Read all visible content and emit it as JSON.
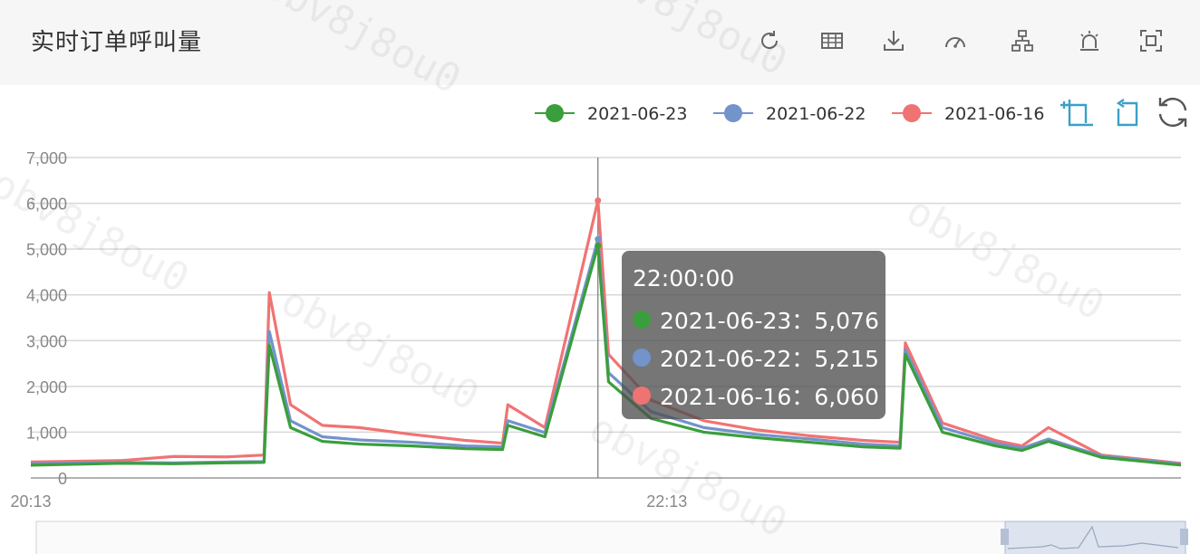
{
  "header": {
    "title": "实时订单呼叫量",
    "tools": [
      "refresh-icon",
      "data-view-icon",
      "download-icon",
      "gauge-icon",
      "hierarchy-icon",
      "alarm-icon",
      "fullscreen-icon"
    ]
  },
  "toolbox": [
    "zoom-select-icon",
    "zoom-back-icon",
    "restore-icon"
  ],
  "tooltip": {
    "time": "22:00:00",
    "rows": [
      {
        "text": "2021-06-23：5,076",
        "color": "#3a9e3c"
      },
      {
        "text": "2021-06-22：5,215",
        "color": "#7393cb"
      },
      {
        "text": "2021-06-16：6,060",
        "color": "#f07373"
      }
    ]
  },
  "watermark": "obv8j8ou0",
  "chart_data": {
    "type": "line",
    "title": "实时订单呼叫量",
    "legend_position": "top-right",
    "x_tick_labels": [
      "20:13",
      "22:13"
    ],
    "x_start": "20:13",
    "x_end": "23:50",
    "ylim": [
      0,
      7000
    ],
    "y_ticks": [
      0,
      1000,
      2000,
      3000,
      4000,
      5000,
      6000,
      7000
    ],
    "y_tick_labels": [
      "0",
      "1,000",
      "2,000",
      "3,000",
      "4,000",
      "5,000",
      "6,000",
      "7,000"
    ],
    "grid": true,
    "x": [
      "20:13",
      "20:30",
      "20:40",
      "20:50",
      "20:57",
      "20:58",
      "21:02",
      "21:08",
      "21:15",
      "21:25",
      "21:35",
      "21:42",
      "21:43",
      "21:50",
      "22:00",
      "22:02",
      "22:10",
      "22:20",
      "22:30",
      "22:40",
      "22:50",
      "22:57",
      "22:58",
      "23:05",
      "23:15",
      "23:20",
      "23:25",
      "23:35",
      "23:50"
    ],
    "series": [
      {
        "name": "2021-06-23",
        "color": "#3a9e3c",
        "values": [
          280,
          320,
          310,
          330,
          340,
          2900,
          1100,
          800,
          740,
          700,
          640,
          620,
          1150,
          900,
          5076,
          2100,
          1300,
          1000,
          880,
          780,
          680,
          650,
          2700,
          1000,
          700,
          600,
          800,
          450,
          280
        ]
      },
      {
        "name": "2021-06-22",
        "color": "#7393cb",
        "values": [
          310,
          340,
          330,
          350,
          360,
          3200,
          1250,
          900,
          830,
          780,
          700,
          680,
          1250,
          990,
          5215,
          2300,
          1450,
          1100,
          950,
          850,
          740,
          700,
          2800,
          1100,
          760,
          650,
          850,
          480,
          300
        ]
      },
      {
        "name": "2021-06-16",
        "color": "#f07373",
        "values": [
          350,
          380,
          470,
          460,
          500,
          4050,
          1600,
          1150,
          1100,
          950,
          820,
          760,
          1600,
          1100,
          6060,
          2700,
          1700,
          1250,
          1050,
          920,
          820,
          780,
          2950,
          1200,
          820,
          700,
          1100,
          500,
          320
        ]
      }
    ]
  }
}
